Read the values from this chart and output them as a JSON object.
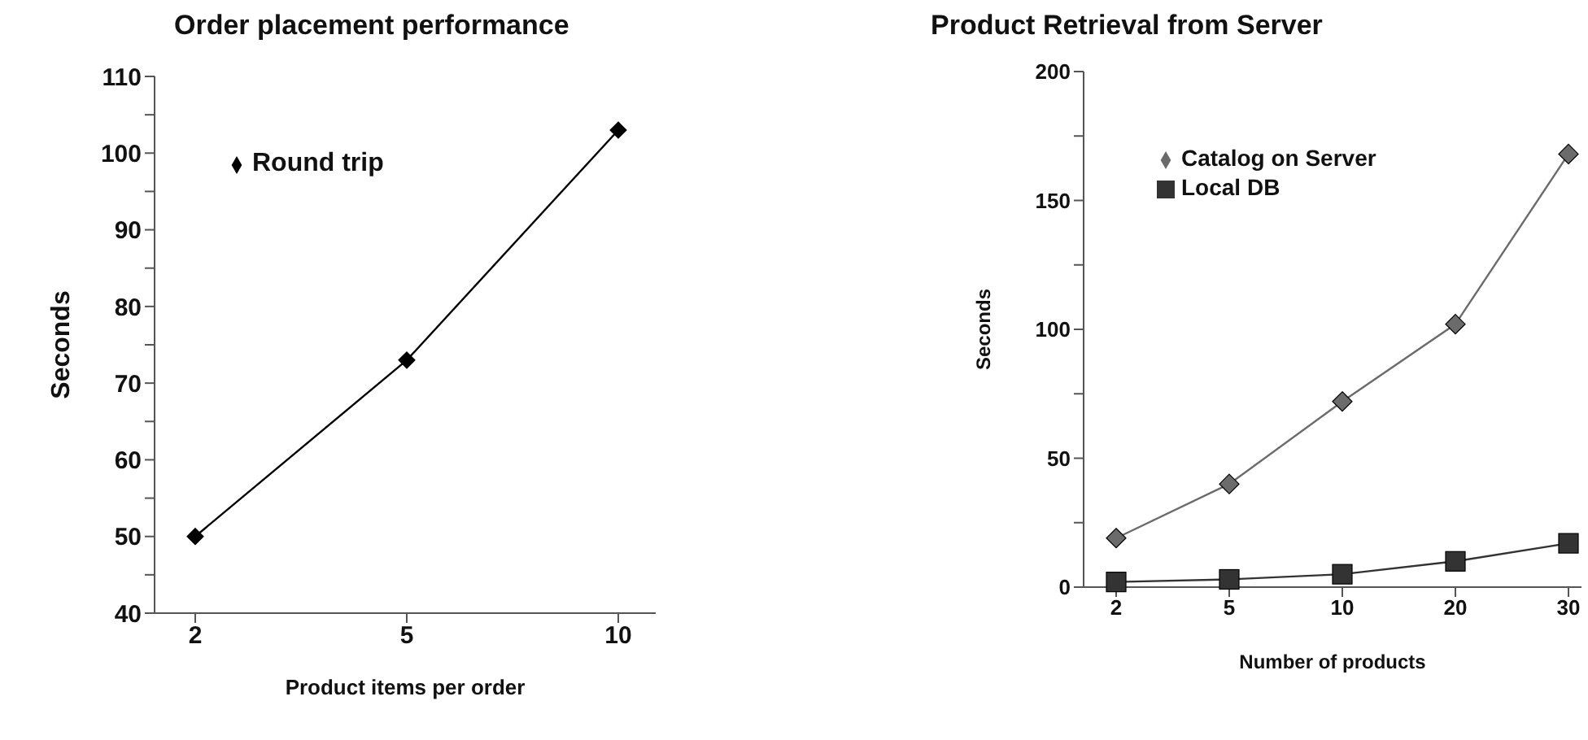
{
  "chart_data": [
    {
      "type": "line",
      "title": "Order placement performance",
      "xlabel": "Product items per order",
      "ylabel": "Seconds",
      "categories": [
        "2",
        "5",
        "10"
      ],
      "series": [
        {
          "name": "Round trip",
          "color": "#000000",
          "marker": "diamond",
          "values": [
            50,
            73,
            103
          ]
        }
      ],
      "ylim": [
        40,
        110
      ],
      "yticks": [
        40,
        {
          "value": 45,
          "label": null
        },
        50,
        {
          "value": 55,
          "label": null
        },
        60,
        {
          "value": 65,
          "label": null
        },
        70,
        {
          "value": 75,
          "label": null
        },
        80,
        {
          "value": 85,
          "label": null
        },
        90,
        {
          "value": 95,
          "label": null
        },
        100,
        {
          "value": 105,
          "label": null
        },
        110
      ],
      "grid": false,
      "legend": "top left"
    },
    {
      "type": "line",
      "title": "Product Retrieval from Server",
      "xlabel": "Number of products",
      "ylabel": "Seconds",
      "categories": [
        "2",
        "5",
        "10",
        "20",
        "30"
      ],
      "series": [
        {
          "name": "Local DB",
          "color": "#333333",
          "marker": "square",
          "values": [
            2,
            3,
            5,
            10,
            17
          ]
        },
        {
          "name": "Catalog on Server",
          "color": "#6b6b6b",
          "marker": "diamond",
          "values": [
            19,
            40,
            72,
            102,
            168
          ]
        }
      ],
      "ylim": [
        0,
        200
      ],
      "yticks": [
        0,
        {
          "value": 25,
          "label": null
        },
        50,
        {
          "value": 75,
          "label": null
        },
        100,
        {
          "value": 125,
          "label": null
        },
        150,
        {
          "value": 175,
          "label": null
        },
        200
      ],
      "grid": false,
      "legend": "top left"
    }
  ]
}
